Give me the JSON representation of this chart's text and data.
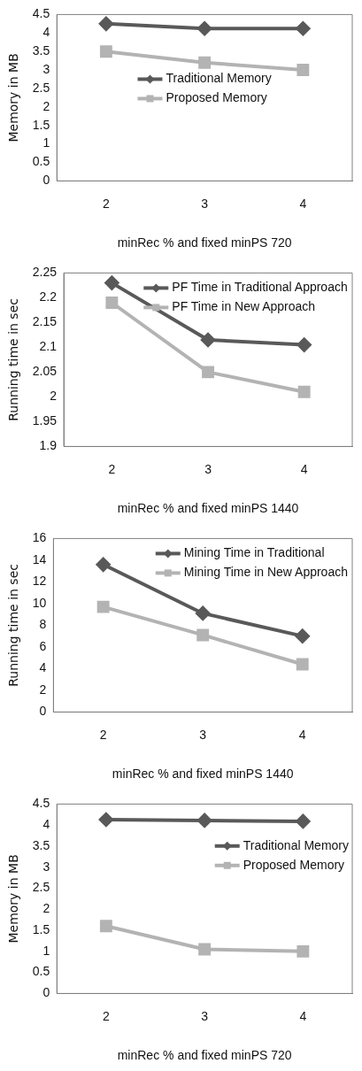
{
  "chart_data": [
    {
      "type": "line",
      "ylabel": "Memory in MB",
      "xlabel": "minRec % and fixed minPS 720",
      "categories": [
        "2",
        "3",
        "4"
      ],
      "ylim": [
        0,
        4.5
      ],
      "yticks": [
        0,
        0.5,
        1,
        1.5,
        2,
        2.5,
        3,
        3.5,
        4,
        4.5
      ],
      "grid": false,
      "legend": "center",
      "series": [
        {
          "name": "Traditional Memory",
          "color": "#595959",
          "marker": "diamond",
          "values": [
            4.25,
            4.12,
            4.12
          ]
        },
        {
          "name": "Proposed Memory",
          "color": "#b3b3b3",
          "marker": "square",
          "values": [
            3.5,
            3.2,
            3.0
          ]
        }
      ]
    },
    {
      "type": "line",
      "ylabel": "Running time in sec",
      "xlabel": "minRec % and fixed minPS 1440",
      "categories": [
        "2",
        "3",
        "4"
      ],
      "ylim": [
        1.9,
        2.25
      ],
      "yticks": [
        1.9,
        1.95,
        2,
        2.05,
        2.1,
        2.15,
        2.2,
        2.25
      ],
      "grid": false,
      "legend": "top right",
      "series": [
        {
          "name": "PF Time in Traditional Approach",
          "color": "#595959",
          "marker": "diamond",
          "values": [
            2.23,
            2.115,
            2.105
          ]
        },
        {
          "name": "PF Time in New Approach",
          "color": "#b3b3b3",
          "marker": "square",
          "values": [
            2.19,
            2.05,
            2.01
          ]
        }
      ]
    },
    {
      "type": "line",
      "ylabel": "Running time in sec",
      "xlabel": "minRec % and fixed minPS 1440",
      "categories": [
        "2",
        "3",
        "4"
      ],
      "ylim": [
        0,
        16
      ],
      "yticks": [
        0,
        2,
        4,
        6,
        8,
        10,
        12,
        14,
        16
      ],
      "grid": false,
      "legend": "top right",
      "series": [
        {
          "name": "Mining Time in Traditional",
          "color": "#595959",
          "marker": "diamond",
          "values": [
            13.6,
            9.1,
            7.0
          ]
        },
        {
          "name": "Mining Time in New Approach",
          "color": "#b3b3b3",
          "marker": "square",
          "values": [
            9.7,
            7.1,
            4.4
          ]
        }
      ]
    },
    {
      "type": "line",
      "ylabel": "Memory in MB",
      "xlabel": "minRec % and fixed minPS 720",
      "categories": [
        "2",
        "3",
        "4"
      ],
      "ylim": [
        0,
        4.5
      ],
      "yticks": [
        0,
        0.5,
        1,
        1.5,
        2,
        2.5,
        3,
        3.5,
        4,
        4.5
      ],
      "grid": false,
      "legend": "right",
      "series": [
        {
          "name": "Traditional Memory",
          "color": "#595959",
          "marker": "diamond",
          "values": [
            4.13,
            4.11,
            4.09
          ]
        },
        {
          "name": "Proposed Memory",
          "color": "#b3b3b3",
          "marker": "square",
          "values": [
            1.6,
            1.05,
            1.0
          ]
        }
      ]
    }
  ]
}
